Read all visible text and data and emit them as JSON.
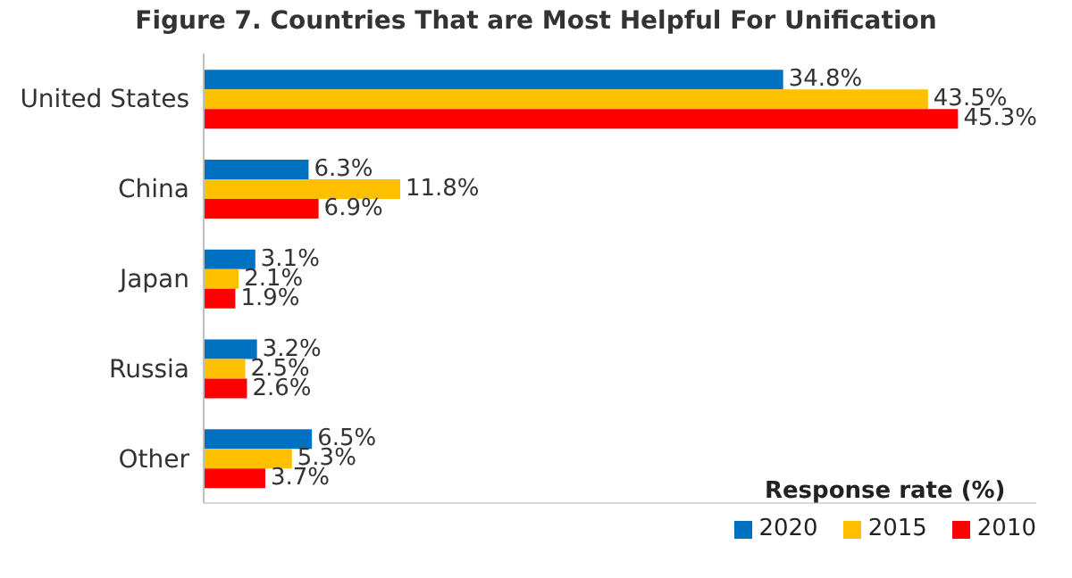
{
  "chart_data": {
    "type": "bar",
    "orientation": "horizontal",
    "title": "Figure 7. Countries That are Most Helpful For Unification",
    "legend_title": "Response rate (%)",
    "categories": [
      "United States",
      "China",
      "Japan",
      "Russia",
      "Other"
    ],
    "series": [
      {
        "name": "2020",
        "color": "#0070c0",
        "values": [
          34.8,
          6.3,
          3.1,
          3.2,
          6.5
        ],
        "value_labels": [
          "34.8%",
          "6.3%",
          "3.1%",
          "3.2%",
          "6.5%"
        ]
      },
      {
        "name": "2015",
        "color": "#ffc000",
        "values": [
          43.5,
          11.8,
          2.1,
          2.5,
          5.3
        ],
        "value_labels": [
          "43.5%",
          "11.8%",
          "2.1%",
          "2.5%",
          "5.3%"
        ]
      },
      {
        "name": "2010",
        "color": "#ff0000",
        "values": [
          45.3,
          6.9,
          1.9,
          2.6,
          3.7
        ],
        "value_labels": [
          "45.3%",
          "6.9%",
          "1.9%",
          "2.6%",
          "3.7%"
        ]
      }
    ],
    "xlim": [
      0,
      50
    ],
    "tick_labels": "y",
    "legend": "bottom right"
  }
}
